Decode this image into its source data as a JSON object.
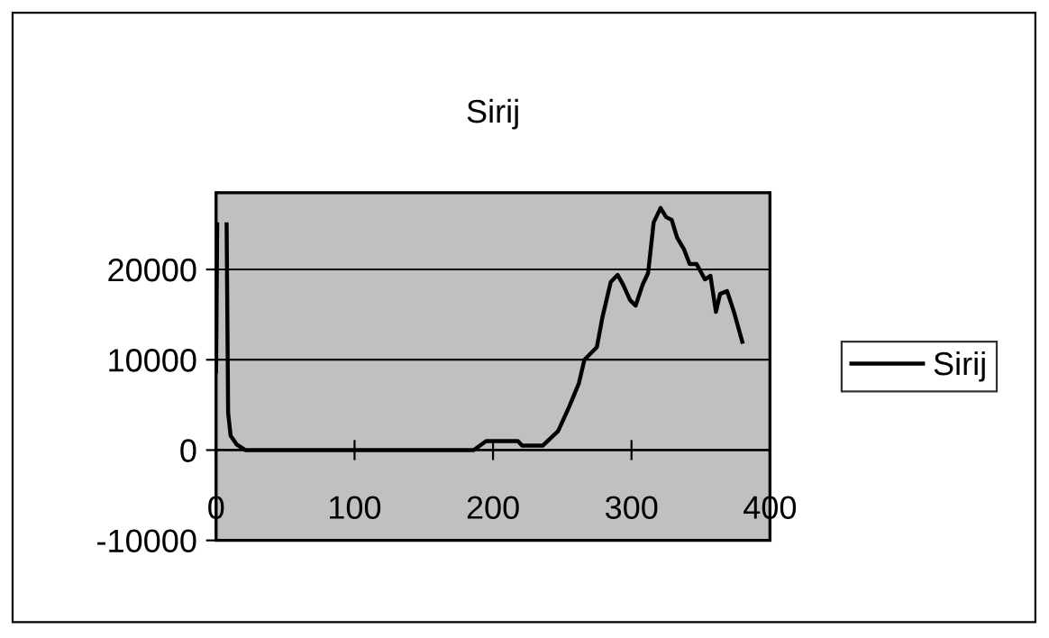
{
  "chart_data": {
    "type": "line",
    "title": "Sirij",
    "x": [
      0,
      0.8,
      2,
      7.2,
      7.6,
      8.7,
      10.5,
      15,
      21,
      186,
      195,
      218,
      221,
      236,
      247,
      255,
      262,
      266,
      275,
      279,
      285,
      290,
      294,
      299,
      303,
      308,
      312,
      316,
      321,
      325,
      329,
      333,
      338,
      342,
      347,
      353,
      357,
      361,
      364,
      369,
      374,
      380
    ],
    "series": [
      {
        "name": "Sirij",
        "color": "#000000",
        "values": [
          8700,
          25000,
          null,
          null,
          25000,
          4100,
          1600,
          600,
          0,
          0,
          1000,
          1000,
          500,
          500,
          2100,
          4800,
          7400,
          10000,
          11400,
          14700,
          18600,
          19400,
          18300,
          16600,
          16000,
          18300,
          19600,
          25200,
          26800,
          25800,
          25500,
          23500,
          22200,
          20600,
          20600,
          18900,
          19300,
          15300,
          17300,
          17600,
          15300,
          12000
        ]
      }
    ],
    "xlim": [
      0,
      400
    ],
    "xticks": [
      0,
      100,
      200,
      300,
      400
    ],
    "ylim": [
      -10000,
      28500
    ],
    "yticks": [
      -10000,
      0,
      10000,
      20000
    ],
    "grid": "y",
    "legend": "right",
    "marker": "none",
    "line_style": "solid"
  }
}
